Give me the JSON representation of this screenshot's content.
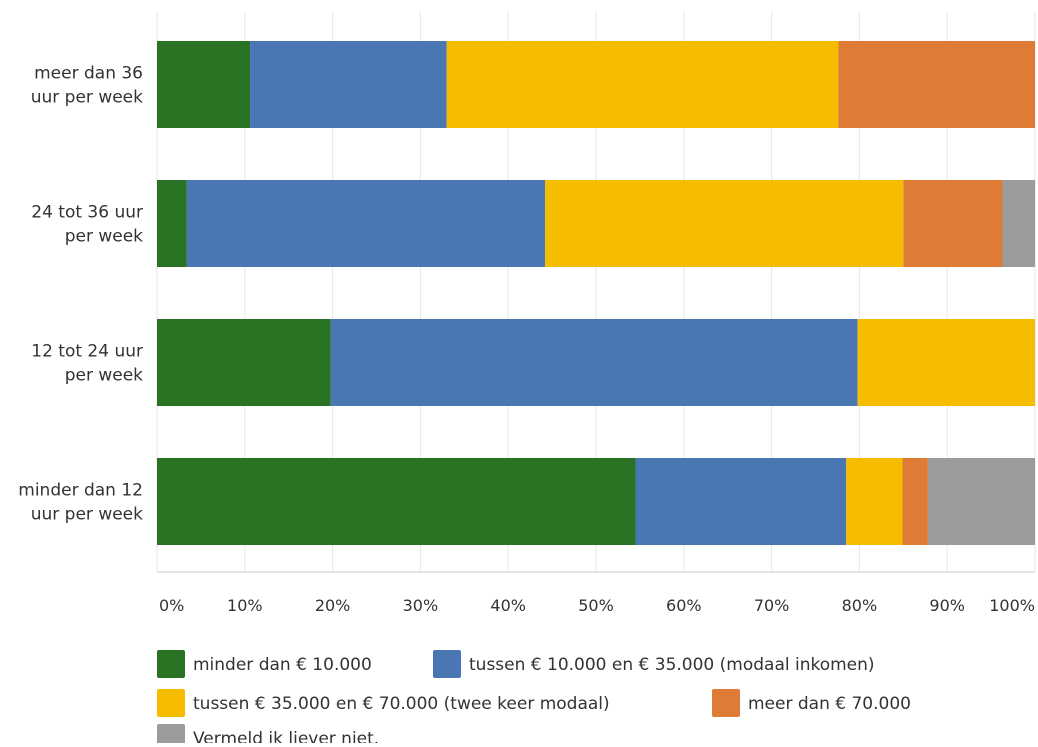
{
  "chart_data": {
    "type": "bar",
    "orientation": "horizontal",
    "stacked": true,
    "categories": [
      [
        "meer dan 36",
        "uur per week"
      ],
      [
        "24 tot 36 uur",
        "per week"
      ],
      [
        "12 tot 24 uur",
        "per week"
      ],
      [
        "minder dan 12",
        "uur per week"
      ]
    ],
    "series": [
      {
        "name": "minder dan € 10.000",
        "color": "#2b7324",
        "values": [
          10.6,
          3.4,
          19.8,
          54.5
        ]
      },
      {
        "name": "tussen € 10.000 en € 35.000 (modaal inkomen)",
        "color": "#4a77b4",
        "values": [
          22.4,
          40.8,
          60.0,
          24.0
        ]
      },
      {
        "name": "tussen € 35.000 en € 70.000 (twee keer modaal)",
        "color": "#f6bd00",
        "values": [
          44.6,
          40.8,
          20.2,
          6.4
        ]
      },
      {
        "name": "meer dan € 70.000",
        "color": "#de7c36",
        "values": [
          22.4,
          11.3,
          0,
          2.9
        ]
      },
      {
        "name": "Vermeld ik liever niet.",
        "color": "#9b9b9b",
        "values": [
          0,
          3.7,
          0,
          12.2
        ]
      }
    ],
    "xticks": [
      "0%",
      "10%",
      "20%",
      "30%",
      "40%",
      "50%",
      "60%",
      "70%",
      "80%",
      "90%",
      "100%"
    ],
    "xlim": [
      0,
      100
    ],
    "grid": true,
    "legend_position": "bottom"
  }
}
